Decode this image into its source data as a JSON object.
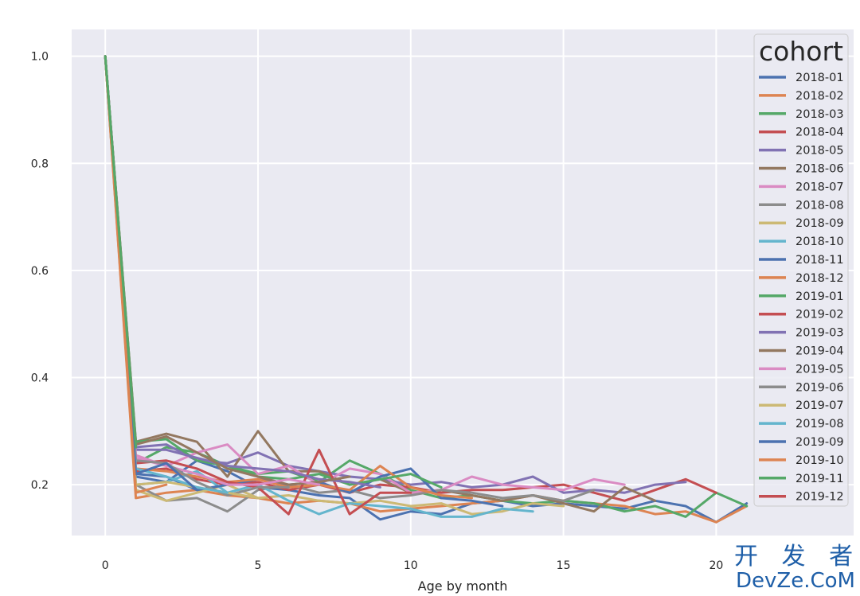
{
  "chart_data": {
    "type": "line",
    "title": "",
    "xlabel": "Age by month",
    "ylabel": "",
    "xlim": [
      -1.1,
      24.5
    ],
    "ylim": [
      0.105,
      1.05
    ],
    "xticks": [
      0,
      5,
      10,
      15,
      20
    ],
    "yticks": [
      0.2,
      0.4,
      0.6,
      0.8,
      1.0
    ],
    "xtick_labels": [
      "0",
      "5",
      "10",
      "15",
      "20"
    ],
    "ytick_labels": [
      "0.2",
      "0.4",
      "0.6",
      "0.8",
      "1.0"
    ],
    "grid": true,
    "legend": {
      "title": "cohort",
      "placement": "upper-right"
    },
    "series": [
      {
        "name": "2018-01",
        "color": "#4c72b0",
        "values": [
          1.0,
          0.215,
          0.205,
          0.245,
          0.225,
          0.195,
          0.19,
          0.18,
          0.175,
          0.135,
          0.15,
          0.145,
          0.165,
          0.17,
          0.16,
          0.165,
          0.16,
          0.155,
          0.17,
          0.16,
          0.13,
          0.165
        ]
      },
      {
        "name": "2018-02",
        "color": "#dd8452",
        "values": [
          1.0,
          0.175,
          0.185,
          0.19,
          0.18,
          0.175,
          0.165,
          0.17,
          0.165,
          0.15,
          0.155,
          0.16,
          0.165,
          0.17,
          0.18,
          0.17,
          0.165,
          0.16,
          0.145,
          0.15,
          0.13,
          0.16
        ]
      },
      {
        "name": "2018-03",
        "color": "#55a868",
        "values": [
          1.0,
          0.24,
          0.27,
          0.26,
          0.235,
          0.22,
          0.225,
          0.205,
          0.245,
          0.22,
          0.19,
          0.175,
          0.18,
          0.17,
          0.165,
          0.17,
          0.165,
          0.15,
          0.16,
          0.14,
          0.185,
          0.16
        ]
      },
      {
        "name": "2018-04",
        "color": "#c44e52",
        "values": [
          1.0,
          0.225,
          0.23,
          0.21,
          0.2,
          0.205,
          0.19,
          0.2,
          0.185,
          0.2,
          0.195,
          0.185,
          0.19,
          0.19,
          0.195,
          0.2,
          0.185,
          0.17,
          0.19,
          0.21,
          0.185
        ]
      },
      {
        "name": "2018-05",
        "color": "#8172b3",
        "values": [
          1.0,
          0.27,
          0.275,
          0.245,
          0.24,
          0.26,
          0.235,
          0.225,
          0.215,
          0.21,
          0.2,
          0.205,
          0.195,
          0.2,
          0.215,
          0.185,
          0.19,
          0.185,
          0.2,
          0.205
        ]
      },
      {
        "name": "2018-06",
        "color": "#937860",
        "values": [
          1.0,
          0.28,
          0.295,
          0.28,
          0.215,
          0.3,
          0.225,
          0.225,
          0.2,
          0.21,
          0.185,
          0.19,
          0.18,
          0.17,
          0.18,
          0.165,
          0.15,
          0.195,
          0.17
        ]
      },
      {
        "name": "2018-07",
        "color": "#da8bc3",
        "values": [
          1.0,
          0.25,
          0.235,
          0.26,
          0.275,
          0.22,
          0.235,
          0.2,
          0.23,
          0.22,
          0.185,
          0.19,
          0.215,
          0.2,
          0.195,
          0.19,
          0.21,
          0.2
        ]
      },
      {
        "name": "2018-08",
        "color": "#8c8c8c",
        "values": [
          1.0,
          0.2,
          0.17,
          0.175,
          0.15,
          0.19,
          0.2,
          0.185,
          0.19,
          0.175,
          0.18,
          0.19,
          0.185,
          0.175,
          0.18,
          0.17,
          0.19
        ]
      },
      {
        "name": "2018-09",
        "color": "#ccb974",
        "values": [
          1.0,
          0.19,
          0.17,
          0.185,
          0.2,
          0.175,
          0.18,
          0.17,
          0.165,
          0.17,
          0.16,
          0.165,
          0.145,
          0.15,
          0.165,
          0.16
        ]
      },
      {
        "name": "2018-10",
        "color": "#64b5cd",
        "values": [
          1.0,
          0.2,
          0.205,
          0.225,
          0.185,
          0.2,
          0.17,
          0.145,
          0.165,
          0.16,
          0.155,
          0.14,
          0.14,
          0.155,
          0.15
        ]
      },
      {
        "name": "2018-11",
        "color": "#4c72b0",
        "values": [
          1.0,
          0.22,
          0.215,
          0.19,
          0.2,
          0.21,
          0.2,
          0.205,
          0.185,
          0.215,
          0.23,
          0.175,
          0.17,
          0.16
        ]
      },
      {
        "name": "2018-12",
        "color": "#dd8452",
        "values": [
          1.0,
          0.23,
          0.225,
          0.215,
          0.205,
          0.21,
          0.195,
          0.2,
          0.19,
          0.235,
          0.195,
          0.18,
          0.175
        ]
      },
      {
        "name": "2019-01",
        "color": "#55a868",
        "values": [
          1.0,
          0.28,
          0.285,
          0.245,
          0.235,
          0.215,
          0.21,
          0.22,
          0.2,
          0.21,
          0.22,
          0.195
        ]
      },
      {
        "name": "2019-02",
        "color": "#c44e52",
        "values": [
          1.0,
          0.24,
          0.245,
          0.23,
          0.205,
          0.195,
          0.145,
          0.265,
          0.145,
          0.185,
          0.185
        ]
      },
      {
        "name": "2019-03",
        "color": "#8172b3",
        "values": [
          1.0,
          0.265,
          0.265,
          0.25,
          0.235,
          0.23,
          0.225,
          0.21,
          0.205,
          0.195
        ]
      },
      {
        "name": "2019-04",
        "color": "#937860",
        "values": [
          1.0,
          0.275,
          0.29,
          0.26,
          0.23,
          0.215,
          0.2,
          0.205,
          0.215
        ]
      },
      {
        "name": "2019-05",
        "color": "#da8bc3",
        "values": [
          1.0,
          0.255,
          0.235,
          0.22,
          0.2,
          0.2,
          0.21,
          0.2
        ]
      },
      {
        "name": "2019-06",
        "color": "#8c8c8c",
        "values": [
          1.0,
          0.245,
          0.24,
          0.205,
          0.18,
          0.195,
          0.195
        ]
      },
      {
        "name": "2019-07",
        "color": "#ccb974",
        "values": [
          1.0,
          0.2,
          0.205,
          0.195,
          0.185,
          0.175
        ]
      },
      {
        "name": "2019-08",
        "color": "#64b5cd",
        "values": [
          1.0,
          0.23,
          0.215,
          0.195,
          0.185
        ]
      },
      {
        "name": "2019-09",
        "color": "#4c72b0",
        "values": [
          1.0,
          0.22,
          0.24,
          0.19
        ]
      },
      {
        "name": "2019-10",
        "color": "#dd8452",
        "values": [
          1.0,
          0.185,
          0.2
        ]
      },
      {
        "name": "2019-11",
        "color": "#55a868",
        "values": [
          1.0,
          0.27
        ]
      },
      {
        "name": "2019-12",
        "color": "#c44e52",
        "values": [
          1.0
        ]
      }
    ]
  },
  "watermark": {
    "line1": "开 发 者",
    "line2": "DevZe.CoM"
  },
  "colors": {
    "plot_bg": "#eaeaf2",
    "grid": "#ffffff",
    "legend_bg": "#eaeaf2",
    "legend_border": "#cccccc",
    "text": "#262626",
    "watermark": "#1f5fa8"
  }
}
